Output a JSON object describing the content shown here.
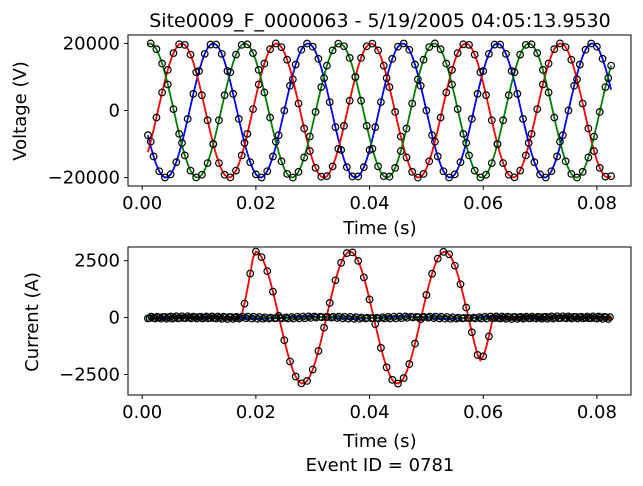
{
  "figure": {
    "title": "Site0009_F_0000063 - 5/19/2005 04:05:13.9530",
    "footer": "Event ID = 0781"
  },
  "chart_data": [
    {
      "type": "line",
      "name": "voltage",
      "xlabel": "Time (s)",
      "ylabel": "Voltage (V)",
      "xlim": [
        -0.0025,
        0.086
      ],
      "ylim": [
        -22500,
        22500
      ],
      "xticks": [
        0.0,
        0.02,
        0.04,
        0.06,
        0.08
      ],
      "xtick_labels": [
        "0.00",
        "0.02",
        "0.04",
        "0.06",
        "0.08"
      ],
      "yticks": [
        -20000,
        0,
        20000
      ],
      "ytick_labels": [
        "−20000",
        "0",
        "20000"
      ],
      "grid": false,
      "series": [
        {
          "color": "#0000ff",
          "amplitude": 20000,
          "phase_deg": 0,
          "markers": true
        },
        {
          "color": "#ff0000",
          "amplitude": 20000,
          "phase_deg": 120,
          "markers": true
        },
        {
          "color": "#008000",
          "amplitude": 20000,
          "phase_deg": -120,
          "markers": true
        }
      ],
      "frequency_hz": 60,
      "t_start": 0.001,
      "t_end": 0.0825
    },
    {
      "type": "line",
      "name": "current",
      "xlabel": "Time (s)",
      "ylabel": "Current (A)",
      "xlim": [
        -0.0025,
        0.086
      ],
      "ylim": [
        -3400,
        3100
      ],
      "xticks": [
        0.0,
        0.02,
        0.04,
        0.06,
        0.08
      ],
      "xtick_labels": [
        "0.00",
        "0.02",
        "0.04",
        "0.06",
        "0.08"
      ],
      "yticks": [
        -2500,
        0,
        2500
      ],
      "ytick_labels": [
        "−2500",
        "0",
        "2500"
      ],
      "grid": false,
      "fault": {
        "start": 0.0185,
        "end": 0.0605,
        "peak_amplitude": 2900
      },
      "series": [
        {
          "color": "#ff0000",
          "baseline_amplitude": 60,
          "phase_deg": 120,
          "faulted": true
        },
        {
          "color": "#0000ff",
          "baseline_amplitude": 50,
          "phase_deg": 0,
          "faulted": false
        },
        {
          "color": "#008000",
          "baseline_amplitude": 40,
          "phase_deg": -120,
          "faulted": false
        }
      ],
      "frequency_hz": 60,
      "t_start": 0.001,
      "t_end": 0.0825
    }
  ]
}
